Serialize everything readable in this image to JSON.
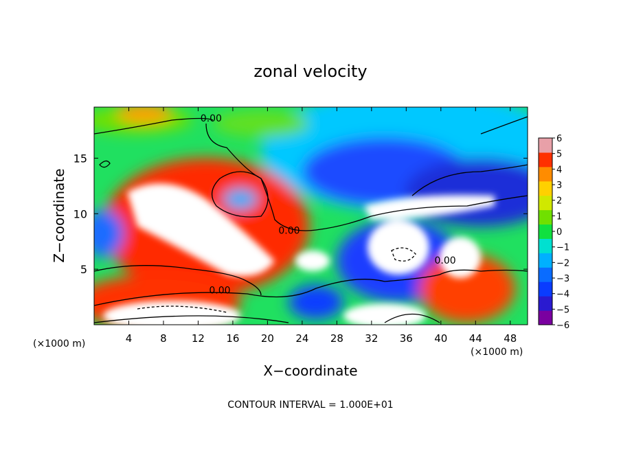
{
  "chart_data": {
    "type": "heatmap",
    "title": "zonal velocity",
    "xlabel": "X−coordinate",
    "ylabel": "Z−coordinate",
    "x_unit_label": "(×1000 m)",
    "y_unit_label": "(×1000 m)",
    "footer": "CONTOUR INTERVAL = 1.000E+01",
    "xlim": [
      0,
      50
    ],
    "ylim": [
      0,
      19.6
    ],
    "x_ticks": [
      4,
      8,
      12,
      16,
      20,
      24,
      28,
      32,
      36,
      40,
      44,
      48
    ],
    "y_ticks": [
      5,
      10,
      15
    ],
    "colorbar": {
      "min": -6,
      "max": 6,
      "ticks": [
        6,
        5,
        4,
        3,
        2,
        1,
        0,
        -1,
        -2,
        -3,
        -4,
        -5,
        -6
      ],
      "tick_labels": [
        "6",
        "5",
        "4",
        "3",
        "2",
        "1",
        "0",
        "−1",
        "−2",
        "−3",
        "−4",
        "−5",
        "−6"
      ],
      "colors": [
        "#7a00a0",
        "#2a1ad0",
        "#0a3cff",
        "#0a6cff",
        "#00b0ff",
        "#00e0d0",
        "#10e040",
        "#70e000",
        "#d0e800",
        "#ffd000",
        "#ff8c00",
        "#ff3000",
        "#e8a0a8"
      ]
    },
    "contour_labels": [
      {
        "text": "0.00",
        "x": 13.5,
        "y": 18.3
      },
      {
        "text": "0.00",
        "x": 22.5,
        "y": 8.2
      },
      {
        "text": "0.00",
        "x": 40.5,
        "y": 5.5
      },
      {
        "text": "0.00",
        "x": 14.5,
        "y": 2.8
      }
    ],
    "grid": false,
    "legend": "right colorbar"
  }
}
